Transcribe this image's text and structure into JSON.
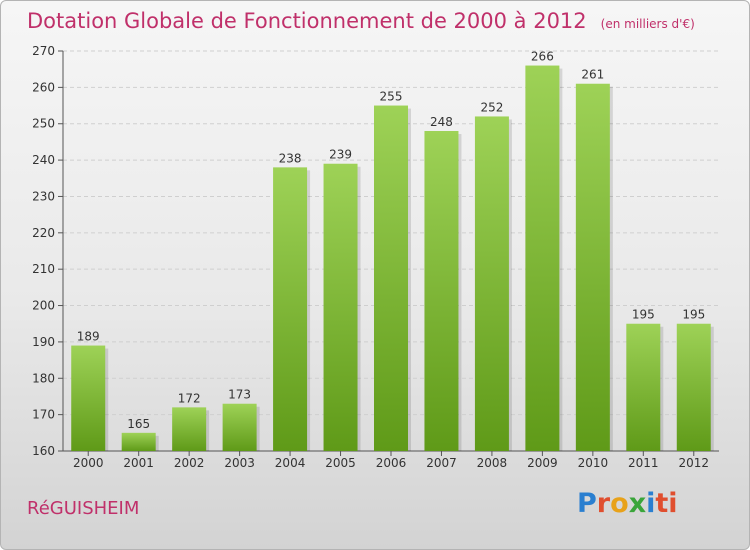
{
  "header": {
    "title": "Dotation Globale de Fonctionnement de 2000 à 2012",
    "unit": "(en milliers d'€)"
  },
  "footer": {
    "commune": "RéGUISHEIM",
    "logo_letters": [
      "P",
      "r",
      "o",
      "x",
      "i",
      "ti"
    ]
  },
  "colors": {
    "title": "#c0306a",
    "bar_light": "#9ed257",
    "bar_dark": "#5f9a18",
    "grid": "#cfcfcf"
  },
  "chart_data": {
    "type": "bar",
    "title": "Dotation Globale de Fonctionnement de 2000 à 2012",
    "subtitle": "(en milliers d'€)",
    "xlabel": "",
    "ylabel": "",
    "categories": [
      "2000",
      "2001",
      "2002",
      "2003",
      "2004",
      "2005",
      "2006",
      "2007",
      "2008",
      "2009",
      "2010",
      "2011",
      "2012"
    ],
    "values": [
      189,
      165,
      172,
      173,
      238,
      239,
      255,
      248,
      252,
      266,
      261,
      195,
      195
    ],
    "ylim": [
      160,
      270
    ],
    "yticks": [
      160,
      170,
      180,
      190,
      200,
      210,
      220,
      230,
      240,
      250,
      260,
      270
    ],
    "grid": true,
    "data_labels": true
  }
}
